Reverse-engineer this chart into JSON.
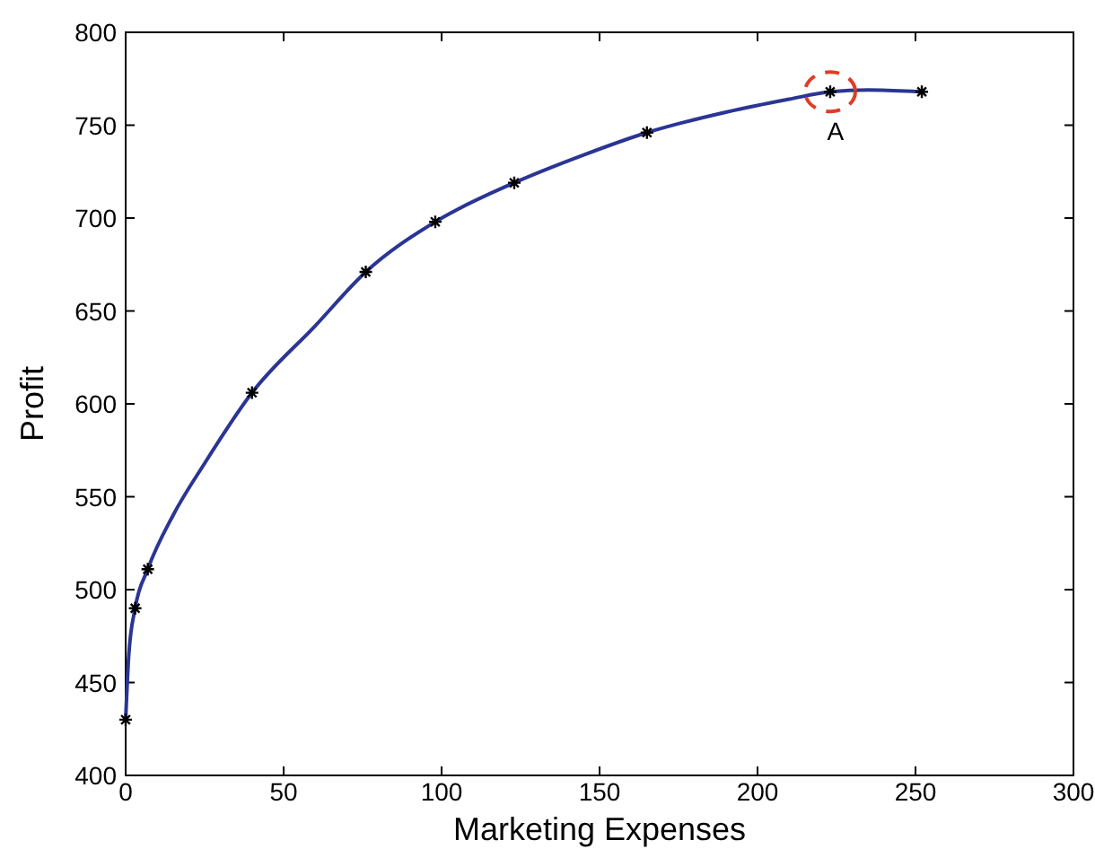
{
  "chart_data": {
    "type": "scatter",
    "xlabel": "Marketing Expenses",
    "ylabel": "Profit",
    "xlim": [
      0,
      300
    ],
    "xticks": [
      0,
      50,
      100,
      150,
      200,
      250,
      300
    ],
    "ylim": [
      400,
      800
    ],
    "yticks": [
      400,
      450,
      500,
      550,
      600,
      650,
      700,
      750,
      800
    ],
    "grid": false,
    "series": [
      {
        "type": "line",
        "color": "#2b3594",
        "marker": "none",
        "line_style": "solid",
        "x": [
          0,
          1,
          3,
          7,
          15,
          25,
          40,
          60,
          76,
          98,
          123,
          145,
          165,
          190,
          210,
          223,
          235,
          252
        ],
        "values": [
          430,
          465,
          490,
          511,
          540,
          568,
          606,
          642,
          671,
          698,
          719,
          734,
          746,
          757,
          764,
          768,
          769,
          768
        ]
      },
      {
        "color": "#000000",
        "marker": "cross",
        "x": [
          0,
          3,
          7,
          40,
          76,
          98,
          123,
          165,
          223,
          252
        ],
        "values": [
          430,
          490,
          511,
          606,
          671,
          698,
          719,
          746,
          768,
          768
        ]
      }
    ],
    "annotations": [
      {
        "text": "A",
        "x": 223,
        "y": 768
      }
    ]
  }
}
